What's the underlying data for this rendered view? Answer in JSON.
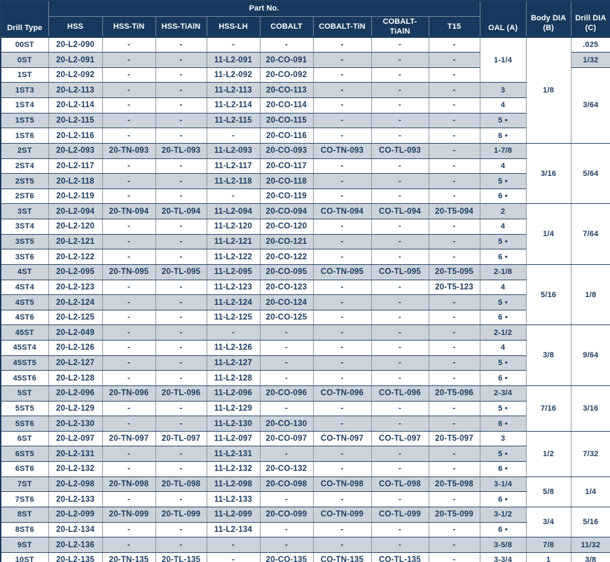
{
  "colors": {
    "header_bg": "#17395d",
    "header_text": "#ffffff",
    "row_alt_bg": "#ccd3da",
    "row_bg": "#ffffff",
    "text_navy": "#1d3e62",
    "grid_horizontal": "#2e4d6e",
    "grid_vertical": "#8c99a7"
  },
  "table": {
    "header": {
      "drill_type": "Drill Type",
      "part_no_group": "Part No.",
      "part_columns": [
        "HSS",
        "HSS-TiN",
        "HSS-TiAlN",
        "HSS-LH",
        "COBALT",
        "COBALT-TiN",
        "COBALT-TiAlN",
        "T15"
      ],
      "oal": "OAL (A)",
      "body_dia": "Body DIA (B)",
      "drill_dia": "Drill DIA (C)"
    },
    "rows": [
      {
        "type": "00ST",
        "parts": [
          "20-L2-090",
          "-",
          "-",
          "-",
          "-",
          "-",
          "-",
          "-"
        ],
        "oal": "1-1/4",
        "oal_span": 3,
        "body": "1/8",
        "body_span": 7,
        "drill": ".025"
      },
      {
        "type": "0ST",
        "parts": [
          "20-L2-091",
          "-",
          "-",
          "11-L2-091",
          "20-CO-091",
          "-",
          "-",
          "-"
        ],
        "drill": "1/32"
      },
      {
        "type": "1ST",
        "parts": [
          "20-L2-092",
          "-",
          "-",
          "11-L2-092",
          "20-CO-092",
          "-",
          "-",
          "-"
        ],
        "drill": "3/64",
        "drill_span": 5
      },
      {
        "type": "1ST3",
        "parts": [
          "20-L2-113",
          "-",
          "-",
          "11-L2-113",
          "20-CO-113",
          "-",
          "-",
          "-"
        ],
        "oal": "3"
      },
      {
        "type": "1ST4",
        "parts": [
          "20-L2-114",
          "-",
          "-",
          "11-L2-114",
          "20-CO-114",
          "-",
          "-",
          "-"
        ],
        "oal": "4"
      },
      {
        "type": "1ST5",
        "parts": [
          "20-L2-115",
          "-",
          "-",
          "11-L2-115",
          "20-CO-115",
          "-",
          "-",
          "-"
        ],
        "oal": "5 •"
      },
      {
        "type": "1ST6",
        "parts": [
          "20-L2-116",
          "-",
          "-",
          "-",
          "20-CO-116",
          "-",
          "-",
          "-"
        ],
        "oal": "6 •"
      },
      {
        "type": "2ST",
        "parts": [
          "20-L2-093",
          "20-TN-093",
          "20-TL-093",
          "11-L2-093",
          "20-CO-093",
          "CO-TN-093",
          "CO-TL-093",
          "-"
        ],
        "oal": "1-7/8",
        "body": "3/16",
        "body_span": 4,
        "drill": "5/64",
        "drill_span": 4
      },
      {
        "type": "2ST4",
        "parts": [
          "20-L2-117",
          "-",
          "-",
          "11-L2-117",
          "20-CO-117",
          "-",
          "-",
          "-"
        ],
        "oal": "4"
      },
      {
        "type": "2ST5",
        "parts": [
          "20-L2-118",
          "-",
          "-",
          "11-L2-118",
          "20-CO-118",
          "-",
          "-",
          "-"
        ],
        "oal": "5 •"
      },
      {
        "type": "2ST6",
        "parts": [
          "20-L2-119",
          "-",
          "-",
          "-",
          "20-CO-119",
          "-",
          "-",
          "-"
        ],
        "oal": "6 •"
      },
      {
        "type": "3ST",
        "parts": [
          "20-L2-094",
          "20-TN-094",
          "20-TL-094",
          "11-L2-094",
          "20-CO-094",
          "CO-TN-094",
          "CO-TL-094",
          "20-T5-094"
        ],
        "oal": "2",
        "body": "1/4",
        "body_span": 4,
        "drill": "7/64",
        "drill_span": 4
      },
      {
        "type": "3ST4",
        "parts": [
          "20-L2-120",
          "-",
          "-",
          "11-L2-120",
          "20-CO-120",
          "-",
          "-",
          "-"
        ],
        "oal": "4"
      },
      {
        "type": "3ST5",
        "parts": [
          "20-L2-121",
          "-",
          "-",
          "11-L2-121",
          "20-CO-121",
          "-",
          "-",
          "-"
        ],
        "oal": "5 •"
      },
      {
        "type": "3ST6",
        "parts": [
          "20-L2-122",
          "-",
          "-",
          "11-L2-122",
          "20-CO-122",
          "-",
          "-",
          "-"
        ],
        "oal": "6 •"
      },
      {
        "type": "4ST",
        "parts": [
          "20-L2-095",
          "20-TN-095",
          "20-TL-095",
          "11-L2-095",
          "20-CO-095",
          "CO-TN-095",
          "CO-TL-095",
          "20-T5-095"
        ],
        "oal": "2-1/8",
        "body": "5/16",
        "body_span": 4,
        "drill": "1/8",
        "drill_span": 4
      },
      {
        "type": "4ST4",
        "parts": [
          "20-L2-123",
          "-",
          "-",
          "11-L2-123",
          "20-CO-123",
          "-",
          "-",
          "20-T5-123"
        ],
        "oal": "4"
      },
      {
        "type": "4ST5",
        "parts": [
          "20-L2-124",
          "-",
          "-",
          "11-L2-124",
          "20-CO-124",
          "-",
          "-",
          "-"
        ],
        "oal": "5 •"
      },
      {
        "type": "4ST6",
        "parts": [
          "20-L2-125",
          "-",
          "-",
          "11-L2-125",
          "20-CO-125",
          "-",
          "-",
          "-"
        ],
        "oal": "6 •"
      },
      {
        "type": "45ST",
        "parts": [
          "20-L2-049",
          "-",
          "-",
          "-",
          "-",
          "-",
          "-",
          "-"
        ],
        "oal": "2-1/2",
        "body": "3/8",
        "body_span": 4,
        "drill": "9/64",
        "drill_span": 4
      },
      {
        "type": "45ST4",
        "parts": [
          "20-L2-126",
          "-",
          "-",
          "11-L2-126",
          "-",
          "-",
          "-",
          "-"
        ],
        "oal": "4"
      },
      {
        "type": "45ST5",
        "parts": [
          "20-L2-127",
          "-",
          "-",
          "11-L2-127",
          "-",
          "-",
          "-",
          "-"
        ],
        "oal": "5 •"
      },
      {
        "type": "45ST6",
        "parts": [
          "20-L2-128",
          "-",
          "-",
          "11-L2-128",
          "-",
          "-",
          "-",
          "-"
        ],
        "oal": "6 •"
      },
      {
        "type": "5ST",
        "parts": [
          "20-L2-096",
          "20-TN-096",
          "20-TL-096",
          "11-L2-096",
          "20-CO-096",
          "CO-TN-096",
          "CO-TL-096",
          "20-T5-096"
        ],
        "oal": "2-3/4",
        "body": "7/16",
        "body_span": 3,
        "drill": "3/16",
        "drill_span": 3
      },
      {
        "type": "5ST5",
        "parts": [
          "20-L2-129",
          "-",
          "-",
          "11-L2-129",
          "-",
          "-",
          "-",
          "-"
        ],
        "oal": "5 •"
      },
      {
        "type": "5ST6",
        "parts": [
          "20-L2-130",
          "-",
          "-",
          "11-L2-130",
          "20-CO-130",
          "-",
          "-",
          "-"
        ],
        "oal": "6 •"
      },
      {
        "type": "6ST",
        "parts": [
          "20-L2-097",
          "20-TN-097",
          "20-TL-097",
          "11-L2-097",
          "20-CO-097",
          "CO-TN-097",
          "CO-TL-097",
          "20-T5-097"
        ],
        "oal": "3",
        "body": "1/2",
        "body_span": 3,
        "drill": "7/32",
        "drill_span": 3
      },
      {
        "type": "6ST5",
        "parts": [
          "20-L2-131",
          "-",
          "-",
          "11-L2-131",
          "-",
          "-",
          "-",
          "-"
        ],
        "oal": "5 •"
      },
      {
        "type": "6ST6",
        "parts": [
          "20-L2-132",
          "-",
          "-",
          "11-L2-132",
          "20-CO-132",
          "-",
          "-",
          "-"
        ],
        "oal": "6 •"
      },
      {
        "type": "7ST",
        "parts": [
          "20-L2-098",
          "20-TN-098",
          "20-TL-098",
          "11-L2-098",
          "20-CO-098",
          "CO-TN-098",
          "CO-TL-098",
          "20-T5-098"
        ],
        "oal": "3-1/4",
        "body": "5/8",
        "body_span": 2,
        "drill": "1/4",
        "drill_span": 2
      },
      {
        "type": "7ST6",
        "parts": [
          "20-L2-133",
          "-",
          "-",
          "11-L2-133",
          "-",
          "-",
          "-",
          "-"
        ],
        "oal": "6 •"
      },
      {
        "type": "8ST",
        "parts": [
          "20-L2-099",
          "20-TN-099",
          "20-TL-099",
          "11-L2-099",
          "20-CO-099",
          "CO-TN-099",
          "CO-TL-099",
          "20-T5-099"
        ],
        "oal": "3-1/2",
        "body": "3/4",
        "body_span": 2,
        "drill": "5/16",
        "drill_span": 2
      },
      {
        "type": "8ST6",
        "parts": [
          "20-L2-134",
          "-",
          "-",
          "11-L2-134",
          "-",
          "-",
          "-",
          "-"
        ],
        "oal": "6 •"
      },
      {
        "type": "9ST",
        "parts": [
          "20-L2-136",
          "-",
          "-",
          "-",
          "-",
          "-",
          "-",
          "-"
        ],
        "oal": "3-5/8",
        "body": "7/8",
        "drill": "11/32"
      },
      {
        "type": "10ST",
        "parts": [
          "20-L2-135",
          "20-TN-135",
          "20-TL-135",
          "-",
          "20-CO-135",
          "CO-TN-135",
          "CO-TL-135",
          "-"
        ],
        "oal": "3-3/4",
        "body": "1",
        "drill": "3/8"
      }
    ]
  }
}
